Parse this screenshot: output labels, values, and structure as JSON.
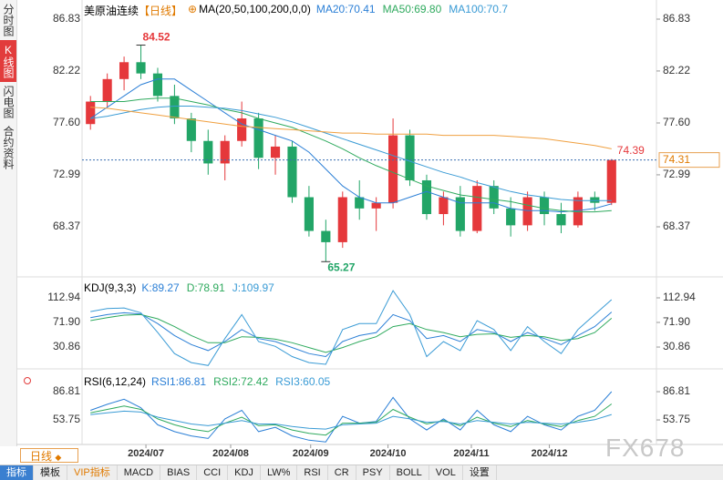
{
  "sidebar": [
    "分时图",
    "K线图",
    "闪电图",
    "合约资料"
  ],
  "period_selector": "日线",
  "toolbar": [
    "指标",
    "模板",
    "VIP指标",
    "MACD",
    "BIAS",
    "CCI",
    "KDJ",
    "LW%",
    "RSI",
    "CR",
    "PSY",
    "BOLL",
    "VOL",
    "设置"
  ],
  "watermark": "FX678",
  "chart_data": [
    {
      "type": "candlestick",
      "title": "美原油连续",
      "period": "【日线】",
      "indicator": "MA(20,50,100,200,0,0)",
      "up_color": "#e5383b",
      "down_color": "#22a567",
      "xlim": [
        -0.5,
        31.5
      ],
      "ylim": [
        64.24,
        87.72
      ],
      "yticks": [
        86.83,
        82.22,
        {
          "value": 77.6,
          "label": "77.60"
        },
        72.99,
        68.37
      ],
      "open": [
        77.5,
        79.5,
        81.5,
        83,
        82,
        80,
        78,
        76,
        74,
        76,
        78,
        74.5,
        75.5,
        71,
        68,
        67,
        71,
        70,
        70.5,
        76.5,
        72.5,
        69.5,
        71,
        68,
        72,
        70,
        68.5,
        71,
        69.5,
        68.5,
        71,
        70.5
      ],
      "high": [
        80,
        82,
        83.5,
        84.52,
        82.5,
        81,
        78.5,
        77,
        76.5,
        79.5,
        78.5,
        76.5,
        76,
        72,
        69,
        71.5,
        72.5,
        71,
        78,
        77,
        73,
        71.5,
        72,
        72.5,
        72.5,
        71,
        71.5,
        71.5,
        70.5,
        71.5,
        71.5,
        74.39
      ],
      "low": [
        77,
        79,
        80.5,
        81.5,
        79.5,
        77.5,
        75,
        73,
        72.5,
        75.5,
        73.5,
        73,
        70.5,
        67.5,
        65.27,
        66.5,
        69,
        68,
        70,
        72,
        69,
        68.5,
        67.5,
        67.8,
        69.5,
        67.5,
        68,
        68.5,
        67.8,
        68.3,
        69.8,
        70.3
      ],
      "close": [
        79.5,
        81.5,
        83,
        82,
        80,
        78,
        76,
        74,
        76,
        78,
        74.5,
        75.5,
        71,
        68,
        67,
        71,
        70,
        70.5,
        76.5,
        72.5,
        69.5,
        71,
        68,
        72,
        70,
        68.5,
        71,
        69.5,
        68.5,
        71,
        70.5,
        74.31
      ],
      "series": [
        {
          "name": "MA20:70.41",
          "color": "#2b7fd6",
          "values": [
            78,
            79,
            80,
            81,
            81.5,
            81.5,
            80.5,
            79.5,
            78.5,
            77.5,
            77,
            76.5,
            76,
            75,
            73.5,
            72,
            71,
            70.5,
            70.5,
            71,
            71.5,
            71,
            70.5,
            70.5,
            70.5,
            70,
            69.8,
            69.8,
            69.7,
            69.8,
            70,
            70.41
          ]
        },
        {
          "name": "MA50:69.80",
          "color": "#2faa5e",
          "values": [
            79.5,
            79.5,
            79.5,
            79.7,
            79.8,
            79.8,
            79.5,
            79.2,
            78.8,
            78.5,
            78,
            77.6,
            77.2,
            76.6,
            76,
            75.3,
            74.5,
            73.8,
            73.2,
            72.6,
            72,
            71.6,
            71.2,
            71,
            70.8,
            70.6,
            70.3,
            70,
            69.8,
            69.7,
            69.7,
            69.8
          ]
        },
        {
          "name": "MA100:70.7",
          "color": "#3a9bd5",
          "values": [
            78,
            78.2,
            78.5,
            78.8,
            79,
            79.1,
            79.1,
            79,
            78.9,
            78.7,
            78.4,
            78.1,
            77.7,
            77.2,
            76.7,
            76.2,
            75.7,
            75.2,
            74.7,
            74.2,
            73.7,
            73.2,
            72.8,
            72.3,
            71.9,
            71.5,
            71.2,
            71,
            70.8,
            70.7,
            70.7,
            70.7
          ]
        },
        {
          "color": "#f0a040",
          "values": [
            79,
            78.9,
            78.7,
            78.5,
            78.3,
            78.1,
            77.9,
            77.7,
            77.5,
            77.3,
            77.2,
            77.1,
            77,
            76.9,
            76.8,
            76.7,
            76.7,
            76.6,
            76.6,
            76.6,
            76.6,
            76.5,
            76.5,
            76.5,
            76.5,
            76.4,
            76.3,
            76.2,
            76,
            75.8,
            75.6,
            75.3
          ]
        }
      ]
    },
    {
      "type": "line",
      "title": "KDJ(9,3,3)",
      "xlim": [
        -0.5,
        31.5
      ],
      "ylim": [
        -1,
        141.8
      ],
      "yticks": [
        112.94,
        {
          "value": 71.9,
          "label": "71.90"
        },
        30.86
      ],
      "series": [
        {
          "name": "K:89.27",
          "color": "#2b7fd6",
          "values": [
            80,
            85,
            88,
            86,
            70,
            50,
            35,
            25,
            40,
            60,
            45,
            40,
            30,
            20,
            15,
            40,
            50,
            55,
            85,
            75,
            45,
            50,
            40,
            60,
            55,
            40,
            55,
            45,
            35,
            50,
            65,
            89.27
          ]
        },
        {
          "name": "D:78.91",
          "color": "#2faa5e",
          "values": [
            75,
            80,
            84,
            85,
            78,
            65,
            50,
            38,
            38,
            48,
            47,
            44,
            38,
            30,
            22,
            30,
            40,
            48,
            65,
            70,
            60,
            55,
            48,
            52,
            53,
            47,
            50,
            48,
            42,
            45,
            55,
            78.91
          ]
        },
        {
          "name": "J:109.97",
          "color": "#3a9bd5",
          "values": [
            90,
            95,
            96,
            88,
            55,
            20,
            5,
            0,
            45,
            85,
            40,
            32,
            15,
            5,
            2,
            60,
            70,
            70,
            125,
            85,
            15,
            40,
            25,
            75,
            60,
            25,
            65,
            40,
            20,
            60,
            85,
            109.97
          ]
        }
      ]
    },
    {
      "type": "line",
      "title": "RSI(6,12,24)",
      "xlim": [
        -0.5,
        31.5
      ],
      "ylim": [
        25,
        110.3
      ],
      "yticks": [
        86.81,
        53.75
      ],
      "xticks": [
        {
          "value": 3.3,
          "label": "2024/07"
        },
        {
          "value": 8.34,
          "label": "2024/08"
        },
        {
          "value": 13.1,
          "label": "2024/09"
        },
        {
          "value": 17.7,
          "label": "2024/10"
        },
        {
          "value": 22.66,
          "label": "2024/11"
        },
        {
          "value": 27.3,
          "label": "2024/12"
        }
      ],
      "series": [
        {
          "name": "RSI1:86.81",
          "color": "#2b7fd6",
          "values": [
            65,
            72,
            78,
            68,
            48,
            40,
            35,
            32,
            55,
            65,
            40,
            45,
            35,
            30,
            28,
            58,
            50,
            52,
            80,
            55,
            42,
            55,
            42,
            65,
            48,
            40,
            58,
            48,
            42,
            58,
            65,
            86.81
          ]
        },
        {
          "name": "RSI2:72.42",
          "color": "#2faa5e",
          "values": [
            62,
            66,
            70,
            66,
            55,
            48,
            43,
            40,
            50,
            57,
            47,
            48,
            42,
            38,
            36,
            50,
            50,
            51,
            66,
            57,
            49,
            53,
            47,
            57,
            50,
            46,
            53,
            49,
            46,
            53,
            58,
            72.42
          ]
        },
        {
          "name": "RSI3:60.05",
          "color": "#3a9bd5",
          "values": [
            60,
            62,
            64,
            63,
            57,
            53,
            49,
            47,
            50,
            53,
            49,
            49,
            46,
            44,
            43,
            48,
            49,
            50,
            58,
            55,
            51,
            52,
            49,
            53,
            51,
            49,
            51,
            50,
            49,
            51,
            54,
            60.05
          ]
        }
      ]
    }
  ]
}
